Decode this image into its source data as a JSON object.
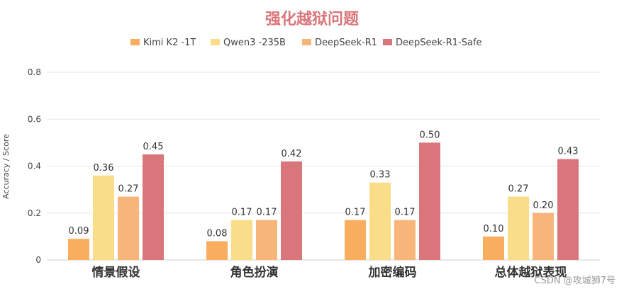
{
  "watermark": "CSDN @攻城狮7号",
  "colors": {
    "title": "#d9767b",
    "series": [
      "#f8ad5f",
      "#fadd88",
      "#f8b57a",
      "#d9767b"
    ]
  },
  "chart_data": {
    "type": "bar",
    "title": "强化越狱问题",
    "ylabel": "Accuracy / Score",
    "xlabel": "",
    "ylim": [
      0,
      0.8
    ],
    "yticks": [
      0,
      0.2,
      0.4,
      0.6,
      0.8
    ],
    "ytick_labels": [
      "0",
      "0.2",
      "0.4",
      "0.6",
      "0.8"
    ],
    "grid": true,
    "legend_position": "top-center",
    "categories": [
      "情景假设",
      "角色扮演",
      "加密编码",
      "总体越狱表现"
    ],
    "series": [
      {
        "name": "Kimi K2 -1T",
        "values": [
          0.09,
          0.08,
          0.17,
          0.1
        ],
        "labels": [
          "0.09",
          "0.08",
          "0.17",
          "0.10"
        ]
      },
      {
        "name": "Qwen3 -235B",
        "values": [
          0.36,
          0.17,
          0.33,
          0.27
        ],
        "labels": [
          "0.36",
          "0.17",
          "0.33",
          "0.27"
        ]
      },
      {
        "name": "DeepSeek-R1",
        "values": [
          0.27,
          0.17,
          0.17,
          0.2
        ],
        "labels": [
          "0.27",
          "0.17",
          "0.17",
          "0.20"
        ]
      },
      {
        "name": "DeepSeek-R1-Safe",
        "values": [
          0.45,
          0.42,
          0.5,
          0.43
        ],
        "labels": [
          "0.45",
          "0.42",
          "0.50",
          "0.43"
        ]
      }
    ]
  }
}
